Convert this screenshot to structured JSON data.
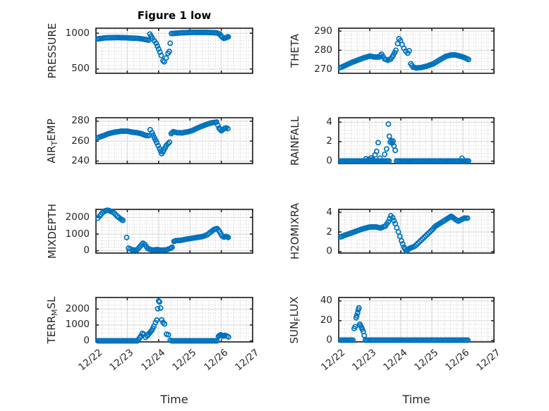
{
  "figure": {
    "title": "Figure 1 low",
    "xlabel": "Time",
    "x_tick_labels": [
      "12/22",
      "12/23",
      "12/24",
      "12/25",
      "12/26",
      "12/27"
    ],
    "marker_color": "#0072BD",
    "axes_color": "#262626",
    "major_grid_color": "#d6d6d6",
    "minor_grid_color": "#c2c2c2",
    "background_color": "#ffffff"
  },
  "chart_data": [
    {
      "type": "scatter",
      "id": "pressure",
      "ylabel": "PRESSURE",
      "ylabel_parts": {
        "pre": "PRESSURE",
        "sub": "",
        "post": ""
      },
      "xlim": [
        0,
        5
      ],
      "ylim": [
        440,
        1070
      ],
      "yticks": [
        500,
        1000
      ],
      "yminor": 50,
      "segments": [
        [
          [
            0.06,
            920
          ],
          [
            0.3,
            935
          ],
          [
            0.7,
            940
          ],
          [
            1.0,
            935
          ],
          [
            1.35,
            928
          ],
          [
            1.55,
            915
          ],
          [
            1.68,
            902
          ],
          [
            1.72,
            988
          ],
          [
            1.76,
            960
          ],
          [
            1.8,
            930
          ],
          [
            1.86,
            895
          ],
          [
            1.92,
            860
          ],
          [
            2.0,
            780
          ],
          [
            2.08,
            690
          ],
          [
            2.14,
            615
          ],
          [
            2.18,
            600
          ],
          [
            2.24,
            655
          ],
          [
            2.3,
            720
          ],
          [
            2.34,
            745
          ],
          [
            2.37,
            860
          ],
          [
            2.41,
            995
          ],
          [
            2.7,
            1005
          ],
          [
            3.1,
            1012
          ],
          [
            3.5,
            1012
          ],
          [
            3.85,
            1005
          ],
          [
            3.95,
            988
          ],
          [
            4.02,
            948
          ],
          [
            4.08,
            928
          ],
          [
            4.15,
            938
          ],
          [
            4.22,
            950
          ]
        ]
      ],
      "points": []
    },
    {
      "type": "scatter",
      "id": "theta",
      "ylabel": "THETA",
      "ylabel_parts": {
        "pre": "THETA",
        "sub": "",
        "post": ""
      },
      "xlim": [
        0,
        5
      ],
      "ylim": [
        268,
        291.5
      ],
      "yticks": [
        270,
        280,
        290
      ],
      "yminor": 2,
      "segments": [
        [
          [
            0.06,
            271
          ],
          [
            0.2,
            272
          ],
          [
            0.4,
            273.5
          ],
          [
            0.6,
            274.8
          ],
          [
            0.8,
            276
          ],
          [
            1.0,
            277
          ],
          [
            1.15,
            276.5
          ],
          [
            1.3,
            276.5
          ],
          [
            1.38,
            278
          ],
          [
            1.48,
            275.5
          ],
          [
            1.58,
            274.8
          ],
          [
            1.68,
            275.5
          ],
          [
            1.76,
            277.5
          ],
          [
            1.84,
            280
          ],
          [
            1.9,
            283.5
          ],
          [
            1.94,
            286
          ],
          [
            1.99,
            285
          ],
          [
            2.04,
            283
          ],
          [
            2.1,
            281
          ],
          [
            2.16,
            279.5
          ],
          [
            2.22,
            278.5
          ],
          [
            2.27,
            279.8
          ],
          [
            2.32,
            273
          ],
          [
            2.4,
            271.2
          ],
          [
            2.5,
            270.8
          ],
          [
            2.65,
            271
          ],
          [
            2.85,
            271.8
          ],
          [
            3.05,
            273
          ],
          [
            3.25,
            275
          ],
          [
            3.45,
            276.8
          ],
          [
            3.6,
            277.5
          ],
          [
            3.75,
            277.6
          ],
          [
            3.9,
            277
          ],
          [
            4.05,
            276.2
          ],
          [
            4.18,
            275.2
          ]
        ]
      ],
      "points": []
    },
    {
      "type": "scatter",
      "id": "air-temp",
      "ylabel": "AIR_TEMP",
      "ylabel_parts": {
        "pre": "AIR",
        "sub": "T",
        "post": "EMP"
      },
      "xlim": [
        0,
        5
      ],
      "ylim": [
        237.5,
        283.5
      ],
      "yticks": [
        240,
        260,
        280
      ],
      "yminor": 4,
      "segments": [
        [
          [
            0.06,
            263.5
          ],
          [
            0.2,
            265
          ],
          [
            0.4,
            267.5
          ],
          [
            0.6,
            269
          ],
          [
            0.8,
            270
          ],
          [
            1.0,
            270
          ],
          [
            1.15,
            269
          ],
          [
            1.3,
            268.5
          ],
          [
            1.45,
            267.5
          ],
          [
            1.58,
            265.8
          ],
          [
            1.68,
            265.5
          ],
          [
            1.73,
            271.5
          ],
          [
            1.79,
            268.5
          ],
          [
            1.86,
            263.5
          ],
          [
            1.94,
            258.5
          ],
          [
            2.03,
            252.5
          ],
          [
            2.1,
            247.5
          ],
          [
            2.17,
            251
          ],
          [
            2.24,
            255.5
          ],
          [
            2.3,
            257.5
          ],
          [
            2.35,
            259
          ],
          [
            2.4,
            267.5
          ],
          [
            2.47,
            269.5
          ],
          [
            2.58,
            268.5
          ],
          [
            2.75,
            268.3
          ],
          [
            2.95,
            269.5
          ],
          [
            3.1,
            271
          ],
          [
            3.3,
            274
          ],
          [
            3.5,
            276.5
          ],
          [
            3.68,
            278.3
          ],
          [
            3.85,
            279.2
          ],
          [
            3.93,
            273
          ],
          [
            4.0,
            270.5
          ],
          [
            4.08,
            272.3
          ],
          [
            4.15,
            273.3
          ],
          [
            4.21,
            272.5
          ]
        ]
      ],
      "points": []
    },
    {
      "type": "scatter",
      "id": "rainfall",
      "ylabel": "RAINFALL",
      "ylabel_parts": {
        "pre": "RAINFALL",
        "sub": "",
        "post": ""
      },
      "xlim": [
        0,
        5
      ],
      "ylim": [
        -0.25,
        4.45
      ],
      "yticks": [
        0,
        2,
        4
      ],
      "yminor": 0.4,
      "segments": [
        [
          [
            0.06,
            0.02
          ],
          [
            1.62,
            0.02
          ]
        ],
        [
          [
            1.86,
            0.02
          ],
          [
            4.18,
            0.02
          ]
        ]
      ],
      "points": [
        [
          0.88,
          0.25
        ],
        [
          0.97,
          0.18
        ],
        [
          1.04,
          0.32
        ],
        [
          1.1,
          0.15
        ],
        [
          1.17,
          0.65
        ],
        [
          1.22,
          1.0
        ],
        [
          1.27,
          1.9
        ],
        [
          1.33,
          0.3
        ],
        [
          1.48,
          0.7
        ],
        [
          1.54,
          1.25
        ],
        [
          1.6,
          3.8
        ],
        [
          1.63,
          2.55
        ],
        [
          1.66,
          1.95
        ],
        [
          1.69,
          2.1
        ],
        [
          1.72,
          1.85
        ],
        [
          1.75,
          2.05
        ],
        [
          1.78,
          1.55
        ],
        [
          1.82,
          1.1
        ],
        [
          3.97,
          0.3
        ]
      ]
    },
    {
      "type": "scatter",
      "id": "mixdepth",
      "ylabel": "MIXDEPTH",
      "ylabel_parts": {
        "pre": "MIXDEPTH",
        "sub": "",
        "post": ""
      },
      "xlim": [
        0,
        5
      ],
      "ylim": [
        -140,
        2480
      ],
      "yticks": [
        0,
        1000,
        2000
      ],
      "yminor": 200,
      "segments": [
        [
          [
            0.06,
            1950
          ],
          [
            0.12,
            2080
          ],
          [
            0.2,
            2270
          ],
          [
            0.3,
            2400
          ],
          [
            0.38,
            2430
          ],
          [
            0.48,
            2360
          ],
          [
            0.58,
            2260
          ],
          [
            0.68,
            2060
          ],
          [
            0.78,
            1920
          ],
          [
            0.86,
            1820
          ]
        ],
        [
          [
            1.04,
            160
          ],
          [
            1.15,
            60
          ],
          [
            1.3,
            30
          ],
          [
            1.42,
            280
          ],
          [
            1.5,
            450
          ],
          [
            1.56,
            380
          ],
          [
            1.66,
            120
          ],
          [
            1.8,
            40
          ],
          [
            1.95,
            70
          ],
          [
            2.1,
            30
          ],
          [
            2.25,
            60
          ],
          [
            2.36,
            130
          ],
          [
            2.43,
            210
          ],
          [
            2.49,
            560
          ],
          [
            2.56,
            610
          ],
          [
            2.7,
            620
          ],
          [
            2.85,
            680
          ],
          [
            3.0,
            730
          ],
          [
            3.2,
            790
          ],
          [
            3.4,
            850
          ],
          [
            3.55,
            960
          ],
          [
            3.66,
            1120
          ],
          [
            3.78,
            1290
          ],
          [
            3.87,
            1330
          ],
          [
            3.95,
            1140
          ],
          [
            4.02,
            900
          ],
          [
            4.08,
            820
          ],
          [
            4.15,
            860
          ],
          [
            4.22,
            800
          ]
        ]
      ],
      "points": [
        [
          0.98,
          800
        ]
      ]
    },
    {
      "type": "scatter",
      "id": "h2omixra",
      "ylabel": "H2OMIXRA",
      "ylabel_parts": {
        "pre": "H2OMIXRA",
        "sub": "",
        "post": ""
      },
      "xlim": [
        0,
        5
      ],
      "ylim": [
        -0.15,
        4.3
      ],
      "yticks": [
        0,
        2,
        4
      ],
      "yminor": 0.4,
      "segments": [
        [
          [
            0.06,
            1.5
          ],
          [
            0.25,
            1.72
          ],
          [
            0.5,
            2.0
          ],
          [
            0.75,
            2.3
          ],
          [
            1.0,
            2.5
          ],
          [
            1.2,
            2.52
          ],
          [
            1.35,
            2.4
          ],
          [
            1.5,
            2.6
          ],
          [
            1.6,
            3.05
          ],
          [
            1.68,
            3.65
          ],
          [
            1.74,
            3.45
          ],
          [
            1.82,
            2.85
          ],
          [
            1.92,
            2.0
          ],
          [
            2.02,
            1.1
          ],
          [
            2.1,
            0.45
          ],
          [
            2.17,
            0.1
          ],
          [
            2.3,
            0.35
          ],
          [
            2.45,
            0.55
          ],
          [
            2.6,
            1.0
          ],
          [
            2.8,
            1.6
          ],
          [
            3.0,
            2.2
          ],
          [
            3.12,
            2.6
          ],
          [
            3.3,
            2.95
          ],
          [
            3.5,
            3.35
          ],
          [
            3.62,
            3.6
          ],
          [
            3.75,
            3.3
          ],
          [
            3.85,
            3.1
          ],
          [
            3.95,
            3.25
          ],
          [
            4.05,
            3.42
          ],
          [
            4.15,
            3.4
          ]
        ]
      ],
      "points": []
    },
    {
      "type": "scatter",
      "id": "terr-msl",
      "ylabel": "TERR_MSL",
      "ylabel_parts": {
        "pre": "TERR",
        "sub": "M",
        "post": "SL"
      },
      "xlim": [
        0,
        5
      ],
      "ylim": [
        -60,
        2720
      ],
      "yticks": [
        0,
        1000,
        2000
      ],
      "yminor": 250,
      "segments": [
        [
          [
            0.06,
            8
          ],
          [
            1.32,
            8
          ]
        ],
        [
          [
            1.36,
            90
          ],
          [
            1.43,
            300
          ],
          [
            1.48,
            480
          ],
          [
            1.53,
            420
          ],
          [
            1.58,
            230
          ],
          [
            1.64,
            330
          ],
          [
            1.71,
            500
          ],
          [
            1.78,
            660
          ],
          [
            1.85,
            920
          ],
          [
            1.9,
            1160
          ],
          [
            1.94,
            1310
          ],
          [
            1.97,
            2020
          ],
          [
            2.0,
            2500
          ],
          [
            2.03,
            2440
          ],
          [
            2.06,
            2060
          ],
          [
            2.1,
            1320
          ],
          [
            2.14,
            1160
          ],
          [
            2.19,
            1060
          ],
          [
            2.25,
            430
          ],
          [
            2.31,
            390
          ],
          [
            2.37,
            40
          ]
        ],
        [
          [
            2.42,
            8
          ],
          [
            3.86,
            8
          ]
        ],
        [
          [
            3.91,
            290
          ],
          [
            3.98,
            390
          ],
          [
            4.05,
            300
          ],
          [
            4.12,
            350
          ],
          [
            4.18,
            300
          ],
          [
            4.23,
            250
          ]
        ]
      ],
      "points": []
    },
    {
      "type": "scatter",
      "id": "sun-flux",
      "ylabel": "SUN_FLUX",
      "ylabel_parts": {
        "pre": "SUN",
        "sub": "F",
        "post": "LUX"
      },
      "xlim": [
        0,
        5
      ],
      "ylim": [
        -1.5,
        43.5
      ],
      "yticks": [
        0,
        20,
        40
      ],
      "yminor": 4,
      "segments": [
        [
          [
            0.06,
            0.3
          ],
          [
            0.46,
            0.3
          ]
        ],
        [
          [
            0.86,
            0.3
          ],
          [
            4.16,
            0.3
          ]
        ]
      ],
      "points": [
        [
          0.5,
          12
        ],
        [
          0.53,
          14
        ],
        [
          0.56,
          23
        ],
        [
          0.58,
          25
        ],
        [
          0.61,
          28
        ],
        [
          0.63,
          31
        ],
        [
          0.65,
          33
        ],
        [
          0.68,
          16.5
        ],
        [
          0.7,
          15
        ],
        [
          0.73,
          13.5
        ],
        [
          0.76,
          11.5
        ],
        [
          0.79,
          9
        ],
        [
          0.82,
          5
        ]
      ]
    }
  ]
}
